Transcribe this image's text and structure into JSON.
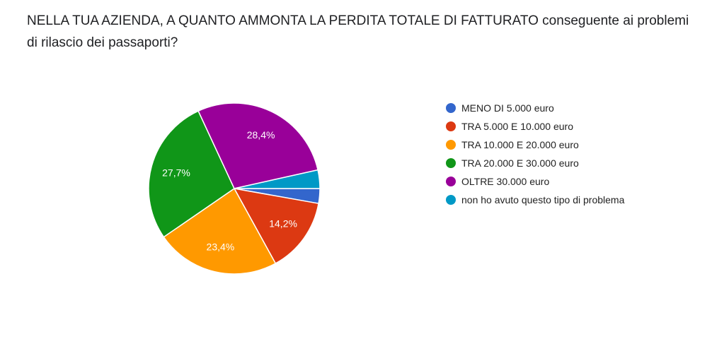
{
  "question": {
    "title": "NELLA TUA AZIENDA, A QUANTO AMMONTA LA PERDITA TOTALE DI FATTURATO conseguente ai problemi di rilascio dei passaporti?"
  },
  "chart_data": {
    "type": "pie",
    "title": "",
    "categories": [
      "MENO DI 5.000 euro",
      "TRA 5.000 E 10.000 euro",
      "TRA 10.000 E 20.000 euro",
      "TRA 20.000 E 30.000 euro",
      "OLTRE 30.000 euro",
      "non ho avuto questo tipo di problema"
    ],
    "values": [
      2.8,
      14.2,
      23.4,
      27.7,
      28.4,
      3.5
    ],
    "value_labels": [
      "",
      "14,2%",
      "23,4%",
      "27,7%",
      "28,4%",
      ""
    ],
    "colors": [
      "#3366cc",
      "#dc3912",
      "#ff9900",
      "#109618",
      "#990099",
      "#0099c6"
    ],
    "legend_position": "right",
    "start_angle_deg": 90,
    "direction": "clockwise"
  }
}
